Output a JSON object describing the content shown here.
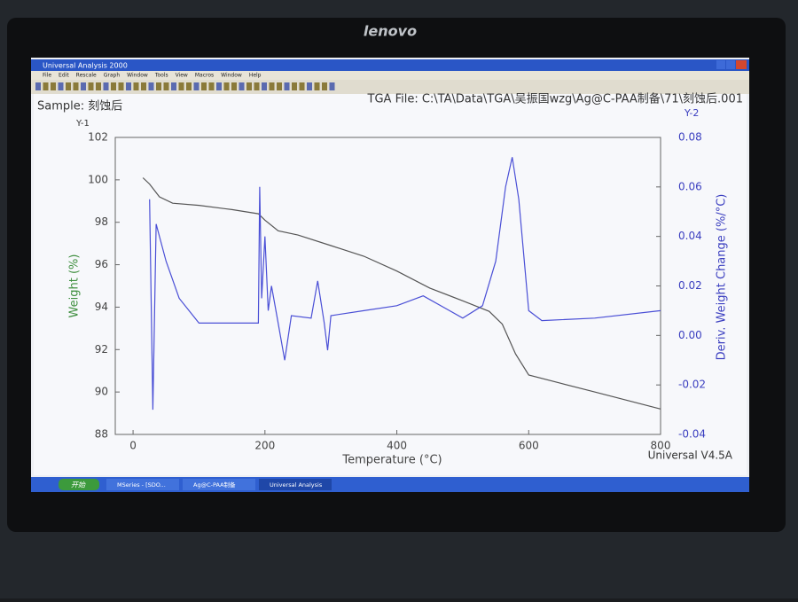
{
  "monitor": {
    "brand": "lenovo"
  },
  "window": {
    "title": "Universal Analysis 2000",
    "menu": [
      "File",
      "Edit",
      "Rescale",
      "Graph",
      "Window",
      "Tools",
      "View",
      "Macros",
      "Window",
      "Help"
    ],
    "sample": "Sample: 刻蚀后",
    "file": "TGA File: C:\\TA\\Data\\TGA\\吴振国wzg\\Ag@C-PAA制备\\71\\刻蚀后.001",
    "version": "Universal V4.5A"
  },
  "taskbar": {
    "start": "开始",
    "items": [
      "MSeries - [SDO...",
      "Ag@C-PAA制备",
      "Universal Analysis"
    ]
  },
  "chart_data": {
    "type": "line",
    "y_tag": "Y-1",
    "y2_tag": "Y-2",
    "xlabel": "Temperature (°C)",
    "ylabel": "Weight (%)",
    "y2label": "Deriv. Weight Change (%/°C)",
    "xlim": [
      -27,
      800
    ],
    "ylim": [
      88,
      102
    ],
    "y2lim": [
      -0.04,
      0.08
    ],
    "xticks": [
      0,
      200,
      400,
      600,
      800
    ],
    "yticks": [
      88,
      90,
      92,
      94,
      96,
      98,
      100,
      102
    ],
    "y2ticks": [
      -0.04,
      -0.02,
      {
        "value": 0,
        "label": "0.00"
      },
      0.02,
      0.04,
      0.06,
      0.08
    ],
    "ylabel_color": "#3f8f3f",
    "y2label_color": "#3b3fc0",
    "series": [
      {
        "color": "#555555",
        "x": [
          15,
          25,
          40,
          60,
          100,
          150,
          190,
          200,
          220,
          250,
          300,
          350,
          400,
          450,
          500,
          540,
          560,
          580,
          600,
          650,
          700,
          750,
          800
        ],
        "values": [
          100.1,
          99.8,
          99.2,
          98.9,
          98.8,
          98.6,
          98.4,
          98.1,
          97.6,
          97.4,
          96.9,
          96.4,
          95.7,
          94.9,
          94.3,
          93.8,
          93.2,
          91.8,
          90.8,
          90.4,
          90.0,
          89.6,
          89.2
        ]
      },
      {
        "color": "#4a4fd6",
        "axis": "y2",
        "x": [
          25,
          30,
          35,
          50,
          70,
          100,
          150,
          190,
          192,
          195,
          200,
          205,
          210,
          220,
          230,
          240,
          270,
          280,
          290,
          295,
          300,
          350,
          400,
          440,
          480,
          500,
          530,
          550,
          565,
          575,
          585,
          600,
          620,
          700,
          800
        ],
        "values": [
          0.055,
          -0.03,
          0.045,
          0.03,
          0.015,
          0.005,
          0.005,
          0.005,
          0.06,
          0.015,
          0.04,
          0.01,
          0.02,
          0.005,
          -0.01,
          0.008,
          0.007,
          0.022,
          0.005,
          -0.006,
          0.008,
          0.01,
          0.012,
          0.016,
          0.01,
          0.007,
          0.012,
          0.03,
          0.06,
          0.072,
          0.055,
          0.01,
          0.006,
          0.007,
          0.01
        ]
      }
    ]
  }
}
